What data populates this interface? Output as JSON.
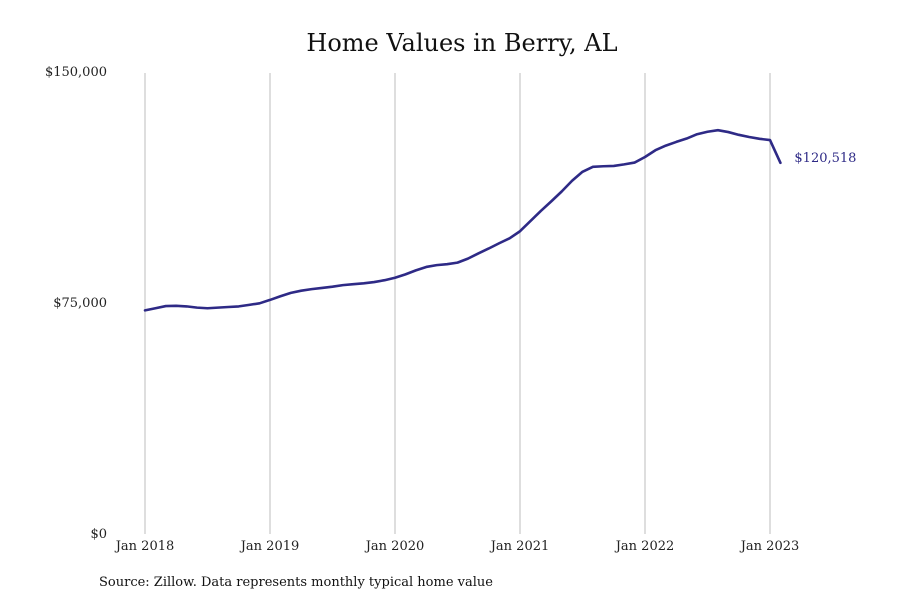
{
  "chart_data": {
    "type": "line",
    "title": "Home Values in Berry, AL",
    "xlabel": "",
    "ylabel": "",
    "y_ticks": [
      "$150,000",
      "$75,000",
      "$0"
    ],
    "y_tick_values": [
      150000,
      75000,
      0
    ],
    "x_ticks": [
      "Jan 2018",
      "Jan 2019",
      "Jan 2020",
      "Jan 2021",
      "Jan 2022",
      "Jan 2023"
    ],
    "x_tick_values": [
      "2018-01",
      "2019-01",
      "2020-01",
      "2021-01",
      "2022-01",
      "2023-01"
    ],
    "xlim": [
      "2018-01",
      "2023-02"
    ],
    "ylim": [
      0,
      150000
    ],
    "grid": "vertical at x ticks",
    "line_color": "#2e2a86",
    "end_label": "$120,518",
    "source": "Source: Zillow. Data represents monthly typical home value",
    "series": [
      {
        "x": [
          "2018-01",
          "2018-02",
          "2018-03",
          "2018-04",
          "2018-05",
          "2018-06",
          "2018-07",
          "2018-08",
          "2018-09",
          "2018-10",
          "2018-11",
          "2018-12",
          "2019-01",
          "2019-02",
          "2019-03",
          "2019-04",
          "2019-05",
          "2019-06",
          "2019-07",
          "2019-08",
          "2019-09",
          "2019-10",
          "2019-11",
          "2019-12",
          "2020-01",
          "2020-02",
          "2020-03",
          "2020-04",
          "2020-05",
          "2020-06",
          "2020-07",
          "2020-08",
          "2020-09",
          "2020-10",
          "2020-11",
          "2020-12",
          "2021-01",
          "2021-02",
          "2021-03",
          "2021-04",
          "2021-05",
          "2021-06",
          "2021-07",
          "2021-08",
          "2021-09",
          "2021-10",
          "2021-11",
          "2021-12",
          "2022-01",
          "2022-02",
          "2022-03",
          "2022-04",
          "2022-05",
          "2022-06",
          "2022-07",
          "2022-08",
          "2022-09",
          "2022-10",
          "2022-11",
          "2022-12",
          "2023-01",
          "2023-02"
        ],
        "values": [
          72600,
          73300,
          74000,
          74100,
          73900,
          73500,
          73300,
          73500,
          73700,
          73900,
          74400,
          74900,
          76000,
          77200,
          78300,
          79000,
          79500,
          79900,
          80300,
          80800,
          81100,
          81400,
          81800,
          82400,
          83200,
          84300,
          85600,
          86700,
          87300,
          87600,
          88100,
          89400,
          91100,
          92700,
          94400,
          96000,
          98300,
          101600,
          104900,
          108000,
          111200,
          114700,
          117600,
          119200,
          119400,
          119500,
          120000,
          120600,
          122400,
          124600,
          126100,
          127300,
          128400,
          129800,
          130600,
          131100,
          130500,
          129600,
          128900,
          128300,
          127900,
          120518
        ]
      }
    ]
  }
}
